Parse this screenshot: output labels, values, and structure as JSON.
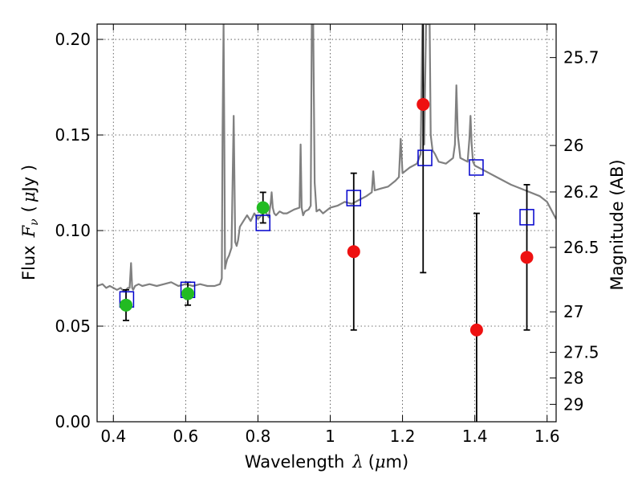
{
  "chart_data": {
    "type": "scatter",
    "title": "",
    "xlabel_prefix": "Wavelength",
    "xlabel_symbol": "λ",
    "xlabel_unit_open": "(",
    "xlabel_unit_mu": "μ",
    "xlabel_unit_rest": "m)",
    "ylabel_prefix": "Flux",
    "ylabel_symbol": "F",
    "ylabel_sub": "ν",
    "ylabel_unit_open": "(",
    "ylabel_unit_mu": "μ",
    "ylabel_unit_rest": "Jy )",
    "y2label": "Magnitude (AB)",
    "xlim": [
      0.355,
      1.625
    ],
    "ylim": [
      0.0,
      0.208
    ],
    "grid": true,
    "x_ticks": [
      0.4,
      0.6,
      0.8,
      1.0,
      1.2,
      1.4,
      1.6
    ],
    "x_tick_labels": [
      "0.4",
      "0.6",
      "0.8",
      "1",
      "1.2",
      "1.4",
      "1.6"
    ],
    "y_ticks": [
      0.0,
      0.05,
      0.1,
      0.15,
      0.2
    ],
    "y_tick_labels": [
      "0.00",
      "0.05",
      "0.10",
      "0.15",
      "0.20"
    ],
    "y2_ticks": [
      {
        "flux": 0.1905,
        "label": "25.7"
      },
      {
        "flux": 0.1445,
        "label": "26"
      },
      {
        "flux": 0.1202,
        "label": "26.2"
      },
      {
        "flux": 0.0912,
        "label": "26.5"
      },
      {
        "flux": 0.0575,
        "label": "27"
      },
      {
        "flux": 0.0363,
        "label": "27.5"
      },
      {
        "flux": 0.0229,
        "label": "28"
      },
      {
        "flux": 0.0091,
        "label": "29"
      }
    ],
    "colors": {
      "model_spectrum": "#808080",
      "model_photometry": "#0000cc",
      "observed_optical": "#22bb22",
      "observed_nir": "#ee1111",
      "errorbar": "#000000"
    },
    "series": [
      {
        "kind": "model-spectrum",
        "x": [
          0.355,
          0.37,
          0.38,
          0.39,
          0.4,
          0.41,
          0.42,
          0.43,
          0.44,
          0.445,
          0.449,
          0.452,
          0.455,
          0.46,
          0.47,
          0.48,
          0.5,
          0.52,
          0.54,
          0.56,
          0.58,
          0.6,
          0.62,
          0.64,
          0.66,
          0.68,
          0.695,
          0.7,
          0.702,
          0.705,
          0.707,
          0.709,
          0.711,
          0.715,
          0.72,
          0.727,
          0.733,
          0.737,
          0.741,
          0.745,
          0.75,
          0.76,
          0.77,
          0.78,
          0.79,
          0.8,
          0.81,
          0.82,
          0.83,
          0.835,
          0.838,
          0.841,
          0.845,
          0.85,
          0.86,
          0.87,
          0.88,
          0.9,
          0.915,
          0.918,
          0.921,
          0.925,
          0.93,
          0.94,
          0.946,
          0.949,
          0.953,
          0.957,
          0.962,
          0.97,
          0.98,
          1.0,
          1.02,
          1.04,
          1.06,
          1.08,
          1.1,
          1.115,
          1.119,
          1.123,
          1.14,
          1.16,
          1.18,
          1.19,
          1.195,
          1.2,
          1.22,
          1.24,
          1.25,
          1.255,
          1.26,
          1.265,
          1.27,
          1.272,
          1.275,
          1.278,
          1.283,
          1.29,
          1.3,
          1.32,
          1.34,
          1.345,
          1.349,
          1.353,
          1.36,
          1.38,
          1.385,
          1.388,
          1.391,
          1.395,
          1.4,
          1.43,
          1.46,
          1.5,
          1.54,
          1.58,
          1.6,
          1.625
        ],
        "y": [
          0.071,
          0.072,
          0.07,
          0.071,
          0.07,
          0.069,
          0.07,
          0.068,
          0.07,
          0.07,
          0.083,
          0.07,
          0.069,
          0.071,
          0.072,
          0.071,
          0.072,
          0.071,
          0.072,
          0.073,
          0.071,
          0.072,
          0.071,
          0.072,
          0.071,
          0.071,
          0.072,
          0.075,
          0.15,
          0.208,
          0.15,
          0.08,
          0.082,
          0.085,
          0.087,
          0.091,
          0.16,
          0.094,
          0.092,
          0.095,
          0.102,
          0.105,
          0.108,
          0.105,
          0.109,
          0.106,
          0.108,
          0.11,
          0.107,
          0.114,
          0.12,
          0.112,
          0.109,
          0.108,
          0.11,
          0.109,
          0.109,
          0.111,
          0.112,
          0.145,
          0.112,
          0.108,
          0.11,
          0.111,
          0.113,
          0.208,
          0.208,
          0.125,
          0.11,
          0.111,
          0.109,
          0.112,
          0.113,
          0.115,
          0.114,
          0.116,
          0.118,
          0.12,
          0.131,
          0.121,
          0.122,
          0.123,
          0.126,
          0.128,
          0.148,
          0.13,
          0.133,
          0.135,
          0.14,
          0.208,
          0.145,
          0.208,
          0.208,
          0.208,
          0.208,
          0.15,
          0.142,
          0.14,
          0.136,
          0.135,
          0.138,
          0.145,
          0.176,
          0.15,
          0.138,
          0.136,
          0.148,
          0.16,
          0.146,
          0.136,
          0.134,
          0.131,
          0.128,
          0.124,
          0.121,
          0.118,
          0.115,
          0.106
        ]
      },
      {
        "kind": "model-photometry",
        "x": [
          0.437,
          0.606,
          0.814,
          1.065,
          1.262,
          1.404,
          1.544
        ],
        "y": [
          0.064,
          0.069,
          0.104,
          0.117,
          0.138,
          0.133,
          0.107
        ]
      },
      {
        "kind": "observed-optical",
        "x": [
          0.435,
          0.606,
          0.814
        ],
        "y": [
          0.061,
          0.067,
          0.112
        ],
        "yerr": [
          0.008,
          0.006,
          0.008
        ]
      },
      {
        "kind": "observed-nir",
        "x": [
          1.065,
          1.257,
          1.405,
          1.544
        ],
        "y": [
          0.089,
          0.166,
          0.048,
          0.086
        ],
        "yerr": [
          0.041,
          0.088,
          0.061,
          0.038
        ]
      }
    ]
  }
}
